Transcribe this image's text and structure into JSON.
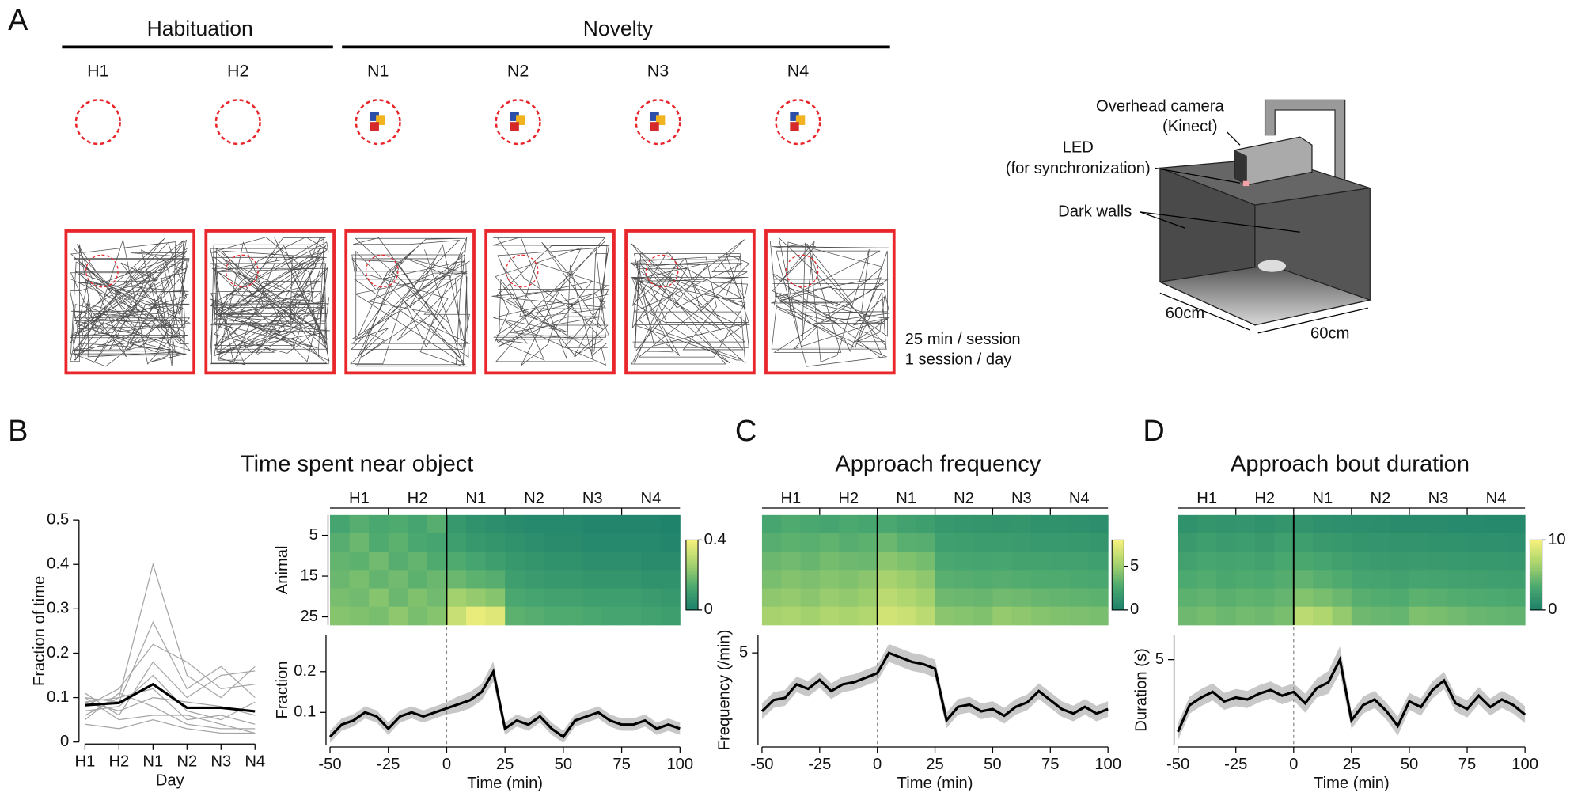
{
  "panel_a": {
    "label": "A",
    "phases": [
      "Habituation",
      "Novelty"
    ],
    "sessions": [
      "H1",
      "H2",
      "N1",
      "N2",
      "N3",
      "N4"
    ],
    "session_note": [
      "25 min / session",
      "1 session / day"
    ],
    "rig": {
      "camera": [
        "Overhead camera",
        "(Kinect)"
      ],
      "led": [
        "LED",
        "(for synchronization)"
      ],
      "walls": "Dark walls",
      "width": "60cm",
      "depth": "60cm"
    }
  },
  "panel_labels": [
    "B",
    "C",
    "D"
  ],
  "chart_data": [
    {
      "type": "line",
      "xlabel": "Day",
      "ylabel": "Fraction of time",
      "categories": [
        "H1",
        "H2",
        "N1",
        "N2",
        "N3",
        "N4"
      ],
      "ylim": [
        0,
        0.5
      ],
      "yticks": [
        0,
        0.1,
        0.2,
        0.3,
        0.4,
        0.5
      ],
      "series": [
        {
          "color": "#a6a6a6",
          "values": [
            0.09,
            0.1,
            0.4,
            0.15,
            0.1,
            0.17
          ]
        },
        {
          "color": "#a6a6a6",
          "values": [
            0.1,
            0.09,
            0.27,
            0.12,
            0.17,
            0.1
          ]
        },
        {
          "color": "#a6a6a6",
          "values": [
            0.08,
            0.12,
            0.22,
            0.18,
            0.12,
            0.13
          ]
        },
        {
          "color": "#a6a6a6",
          "values": [
            0.11,
            0.06,
            0.18,
            0.1,
            0.15,
            0.16
          ]
        },
        {
          "color": "#a6a6a6",
          "values": [
            0.07,
            0.08,
            0.15,
            0.07,
            0.05,
            0.09
          ]
        },
        {
          "color": "#a6a6a6",
          "values": [
            0.06,
            0.1,
            0.12,
            0.05,
            0.06,
            0.04
          ]
        },
        {
          "color": "#a6a6a6",
          "values": [
            0.09,
            0.07,
            0.1,
            0.09,
            0.08,
            0.06
          ]
        },
        {
          "color": "#a6a6a6",
          "values": [
            0.05,
            0.11,
            0.08,
            0.04,
            0.03,
            0.03
          ]
        },
        {
          "color": "#a6a6a6",
          "values": [
            0.1,
            0.05,
            0.06,
            0.06,
            0.04,
            0.02
          ]
        },
        {
          "color": "#a6a6a6",
          "values": [
            0.04,
            0.03,
            0.05,
            0.03,
            0.02,
            0.02
          ]
        },
        {
          "color": "#000000",
          "values": [
            0.083,
            0.088,
            0.13,
            0.077,
            0.077,
            0.069
          ]
        }
      ]
    },
    {
      "type": "heatmap",
      "title": "Time spent near object",
      "sessions": [
        "H1",
        "H2",
        "N1",
        "N2",
        "N3",
        "N4"
      ],
      "ylabel": "Animal",
      "xlim": [
        -50,
        100
      ],
      "ylim": [
        0,
        27
      ],
      "yticks": [
        5,
        15,
        25
      ],
      "vline": 0,
      "clim": [
        0,
        0.4
      ],
      "cticks": [
        0,
        0.4
      ],
      "colormap": [
        "#1b7f6b",
        "#4aa86f",
        "#a8d36e",
        "#f5f07c"
      ],
      "values": [
        [
          0.12,
          0.15,
          0.13,
          0.14,
          0.12,
          0.15,
          0.08,
          0.06,
          0.05,
          0.04,
          0.03,
          0.03,
          0.03,
          0.02,
          0.02,
          0.02,
          0.02,
          0.01
        ],
        [
          0.15,
          0.18,
          0.14,
          0.16,
          0.13,
          0.12,
          0.1,
          0.08,
          0.07,
          0.06,
          0.05,
          0.04,
          0.04,
          0.03,
          0.03,
          0.03,
          0.03,
          0.02
        ],
        [
          0.17,
          0.16,
          0.19,
          0.15,
          0.17,
          0.14,
          0.14,
          0.12,
          0.1,
          0.08,
          0.07,
          0.06,
          0.06,
          0.05,
          0.05,
          0.05,
          0.04,
          0.04
        ],
        [
          0.18,
          0.2,
          0.17,
          0.19,
          0.16,
          0.18,
          0.18,
          0.16,
          0.15,
          0.1,
          0.09,
          0.08,
          0.08,
          0.07,
          0.07,
          0.07,
          0.06,
          0.06
        ],
        [
          0.2,
          0.19,
          0.22,
          0.18,
          0.21,
          0.19,
          0.26,
          0.24,
          0.22,
          0.13,
          0.12,
          0.11,
          0.11,
          0.1,
          0.1,
          0.1,
          0.09,
          0.08
        ],
        [
          0.22,
          0.21,
          0.2,
          0.23,
          0.2,
          0.22,
          0.32,
          0.38,
          0.36,
          0.16,
          0.15,
          0.14,
          0.14,
          0.13,
          0.12,
          0.12,
          0.11,
          0.1
        ]
      ]
    },
    {
      "type": "line",
      "xlabel": "Time (min)",
      "ylabel": "Fraction",
      "xlim": [
        -50,
        100
      ],
      "xticks": [
        -50,
        -25,
        0,
        25,
        50,
        75,
        100
      ],
      "ylim": [
        0.02,
        0.29
      ],
      "yticks": [
        0.1,
        0.2
      ],
      "vline": 0,
      "color": "#000000",
      "band_color": "#c8c8c8",
      "x": [
        -50,
        -45,
        -40,
        -35,
        -30,
        -25,
        -20,
        -15,
        -10,
        -5,
        0,
        5,
        10,
        15,
        20,
        25,
        30,
        35,
        40,
        45,
        50,
        55,
        60,
        65,
        70,
        75,
        80,
        85,
        90,
        95,
        100
      ],
      "values": [
        0.04,
        0.07,
        0.08,
        0.1,
        0.09,
        0.06,
        0.09,
        0.1,
        0.09,
        0.1,
        0.11,
        0.12,
        0.13,
        0.15,
        0.2,
        0.06,
        0.08,
        0.07,
        0.09,
        0.06,
        0.04,
        0.08,
        0.09,
        0.1,
        0.08,
        0.07,
        0.07,
        0.08,
        0.06,
        0.07,
        0.06
      ],
      "error": [
        0.015,
        0.015,
        0.015,
        0.015,
        0.015,
        0.015,
        0.015,
        0.015,
        0.015,
        0.015,
        0.015,
        0.02,
        0.02,
        0.02,
        0.025,
        0.015,
        0.015,
        0.015,
        0.015,
        0.015,
        0.015,
        0.015,
        0.015,
        0.015,
        0.015,
        0.015,
        0.015,
        0.015,
        0.015,
        0.015,
        0.015
      ]
    },
    {
      "type": "heatmap",
      "title": "Approach frequency",
      "sessions": [
        "H1",
        "H2",
        "N1",
        "N2",
        "N3",
        "N4"
      ],
      "xlim": [
        -50,
        100
      ],
      "ylim": [
        0,
        27
      ],
      "vline": 0,
      "clim": [
        0,
        8
      ],
      "cticks": [
        0,
        5
      ],
      "colormap": [
        "#1b7f6b",
        "#4aa86f",
        "#a8d36e",
        "#f5f07c"
      ],
      "values": [
        [
          2.5,
          2.8,
          2.6,
          2.4,
          2.7,
          2.5,
          2.6,
          2.2,
          2.0,
          1.6,
          1.5,
          1.4,
          1.3,
          1.4,
          1.2,
          1.2,
          1.1,
          1.0
        ],
        [
          3.0,
          3.2,
          3.1,
          3.3,
          3.0,
          3.2,
          3.6,
          3.1,
          3.0,
          2.1,
          2.0,
          1.9,
          1.9,
          1.8,
          1.7,
          1.7,
          1.6,
          1.5
        ],
        [
          3.6,
          3.8,
          3.5,
          3.9,
          3.7,
          3.6,
          4.5,
          4.2,
          3.9,
          2.6,
          2.5,
          2.4,
          2.5,
          2.3,
          2.3,
          2.2,
          2.2,
          2.1
        ],
        [
          4.0,
          4.3,
          4.1,
          4.4,
          4.2,
          4.5,
          5.3,
          5.0,
          4.6,
          3.1,
          3.0,
          2.9,
          3.0,
          2.9,
          2.8,
          2.8,
          2.7,
          2.6
        ],
        [
          4.6,
          4.8,
          4.5,
          4.9,
          4.7,
          5.0,
          6.0,
          5.6,
          5.2,
          3.7,
          3.6,
          3.5,
          3.8,
          3.7,
          3.5,
          3.4,
          3.3,
          3.2
        ],
        [
          5.3,
          5.5,
          5.2,
          5.6,
          5.4,
          5.7,
          6.8,
          6.5,
          6.0,
          4.5,
          4.4,
          4.2,
          4.8,
          4.6,
          4.4,
          4.2,
          4.1,
          4.0
        ]
      ]
    },
    {
      "type": "line",
      "xlabel": "Time (min)",
      "ylabel": "Frequency (/min)",
      "xlim": [
        -50,
        100
      ],
      "xticks": [
        -50,
        -25,
        0,
        25,
        50,
        75,
        100
      ],
      "ylim": [
        0.9,
        5.8
      ],
      "yticks": [
        5
      ],
      "vline": 0,
      "color": "#000000",
      "band_color": "#c8c8c8",
      "x": [
        -50,
        -45,
        -40,
        -35,
        -30,
        -25,
        -20,
        -15,
        -10,
        -5,
        0,
        5,
        10,
        15,
        20,
        25,
        30,
        35,
        40,
        45,
        50,
        55,
        60,
        65,
        70,
        75,
        80,
        85,
        90,
        95,
        100
      ],
      "values": [
        2.4,
        2.9,
        3.0,
        3.6,
        3.4,
        3.8,
        3.3,
        3.6,
        3.7,
        3.9,
        4.1,
        5.0,
        4.8,
        4.6,
        4.5,
        4.3,
        2.0,
        2.6,
        2.7,
        2.4,
        2.5,
        2.2,
        2.6,
        2.8,
        3.3,
        2.9,
        2.5,
        2.3,
        2.6,
        2.3,
        2.5
      ],
      "error": [
        0.35,
        0.35,
        0.35,
        0.35,
        0.35,
        0.35,
        0.35,
        0.35,
        0.35,
        0.35,
        0.35,
        0.4,
        0.4,
        0.4,
        0.4,
        0.4,
        0.35,
        0.35,
        0.35,
        0.35,
        0.35,
        0.35,
        0.35,
        0.35,
        0.35,
        0.35,
        0.35,
        0.35,
        0.35,
        0.35,
        0.35
      ]
    },
    {
      "type": "heatmap",
      "title": "Approach bout duration",
      "sessions": [
        "H1",
        "H2",
        "N1",
        "N2",
        "N3",
        "N4"
      ],
      "xlim": [
        -50,
        100
      ],
      "ylim": [
        0,
        27
      ],
      "vline": 0,
      "clim": [
        0,
        10
      ],
      "cticks": [
        0,
        10
      ],
      "colormap": [
        "#1b7f6b",
        "#4aa86f",
        "#a8d36e",
        "#f5f07c"
      ],
      "values": [
        [
          1.5,
          1.8,
          1.6,
          1.7,
          1.5,
          1.8,
          1.6,
          1.4,
          1.3,
          1.2,
          1.1,
          1.0,
          1.0,
          1.0,
          0.9,
          0.9,
          0.8,
          0.8
        ],
        [
          2.2,
          2.5,
          2.3,
          2.4,
          2.2,
          2.6,
          2.5,
          2.2,
          2.0,
          1.8,
          1.7,
          1.6,
          1.6,
          1.5,
          1.5,
          1.4,
          1.4,
          1.3
        ],
        [
          2.8,
          3.1,
          2.9,
          3.0,
          2.8,
          3.2,
          3.3,
          3.0,
          2.7,
          2.4,
          2.3,
          2.2,
          2.3,
          2.2,
          2.1,
          2.0,
          2.0,
          1.9
        ],
        [
          3.4,
          3.6,
          3.3,
          3.5,
          3.4,
          3.7,
          4.2,
          3.8,
          3.5,
          3.0,
          2.9,
          2.8,
          3.0,
          2.9,
          2.8,
          2.7,
          2.6,
          2.5
        ],
        [
          4.0,
          4.2,
          3.9,
          4.1,
          4.0,
          4.3,
          5.4,
          5.0,
          4.5,
          3.8,
          3.6,
          3.5,
          4.0,
          3.8,
          3.6,
          3.5,
          3.4,
          3.3
        ],
        [
          4.6,
          4.9,
          4.5,
          4.8,
          4.6,
          5.0,
          7.5,
          7.0,
          6.0,
          4.6,
          4.4,
          4.3,
          5.2,
          5.0,
          4.7,
          4.4,
          4.3,
          4.2
        ]
      ]
    },
    {
      "type": "line",
      "xlabel": "Time (min)",
      "ylabel": "Duration (s)",
      "xlim": [
        -50,
        100
      ],
      "xticks": [
        -50,
        -25,
        0,
        25,
        50,
        75,
        100
      ],
      "ylim": [
        0.5,
        6.3
      ],
      "yticks": [
        5
      ],
      "vline": 0,
      "color": "#000000",
      "band_color": "#c8c8c8",
      "x": [
        -50,
        -45,
        -40,
        -35,
        -30,
        -25,
        -20,
        -15,
        -10,
        -5,
        0,
        5,
        10,
        15,
        20,
        25,
        30,
        35,
        40,
        45,
        50,
        55,
        60,
        65,
        70,
        75,
        80,
        85,
        90,
        95,
        100
      ],
      "values": [
        1.2,
        2.6,
        3.0,
        3.3,
        2.8,
        3.0,
        2.9,
        3.2,
        3.4,
        3.1,
        3.3,
        2.7,
        3.5,
        3.8,
        5.0,
        1.8,
        2.6,
        2.9,
        2.3,
        1.5,
        2.8,
        2.5,
        3.4,
        3.9,
        2.7,
        2.4,
        3.1,
        2.5,
        2.9,
        2.6,
        2.1
      ],
      "error": [
        0.45,
        0.45,
        0.45,
        0.45,
        0.45,
        0.45,
        0.45,
        0.45,
        0.45,
        0.45,
        0.45,
        0.5,
        0.5,
        0.6,
        0.7,
        0.45,
        0.45,
        0.45,
        0.45,
        0.5,
        0.45,
        0.45,
        0.45,
        0.45,
        0.45,
        0.45,
        0.45,
        0.45,
        0.45,
        0.45,
        0.45
      ]
    }
  ]
}
